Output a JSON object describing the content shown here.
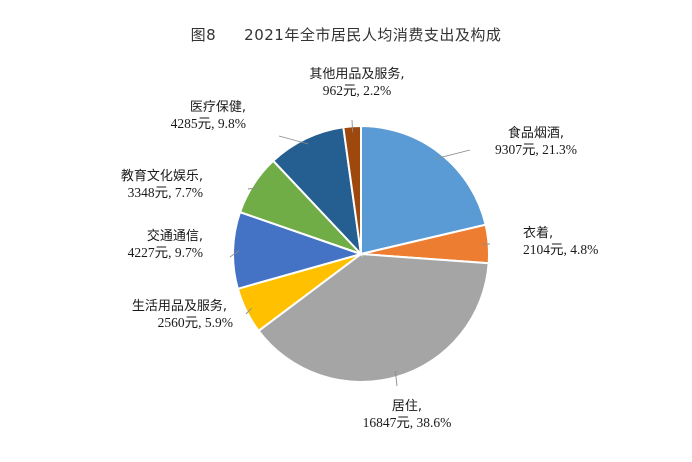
{
  "title": {
    "figure": "图8",
    "text": "2021年全市居民人均消费支出及构成"
  },
  "chart_data": {
    "type": "pie",
    "title": "2021年全市居民人均消费支出及构成",
    "unit": "元",
    "slices": [
      {
        "name": "食品烟酒",
        "value": 9307,
        "percent": 21.3,
        "label": "9307元, 21.3%",
        "color": "#5b9bd5"
      },
      {
        "name": "衣着",
        "value": 2104,
        "percent": 4.8,
        "label": "2104元, 4.8%",
        "color": "#ed7d31"
      },
      {
        "name": "居住",
        "value": 16847,
        "percent": 38.6,
        "label": "16847元, 38.6%",
        "color": "#a5a5a5"
      },
      {
        "name": "生活用品及服务",
        "value": 2560,
        "percent": 5.9,
        "label": "2560元, 5.9%",
        "color": "#ffc000"
      },
      {
        "name": "交通通信",
        "value": 4227,
        "percent": 9.7,
        "label": "4227元, 9.7%",
        "color": "#4472c4"
      },
      {
        "name": "教育文化娱乐",
        "value": 3348,
        "percent": 7.7,
        "label": "3348元, 7.7%",
        "color": "#70ad47"
      },
      {
        "name": "医疗保健",
        "value": 4285,
        "percent": 9.8,
        "label": "4285元, 9.8%",
        "color": "#255e91"
      },
      {
        "name": "其他用品及服务",
        "value": 962,
        "percent": 2.2,
        "label": "962元, 2.2%",
        "color": "#9e480e"
      }
    ]
  }
}
